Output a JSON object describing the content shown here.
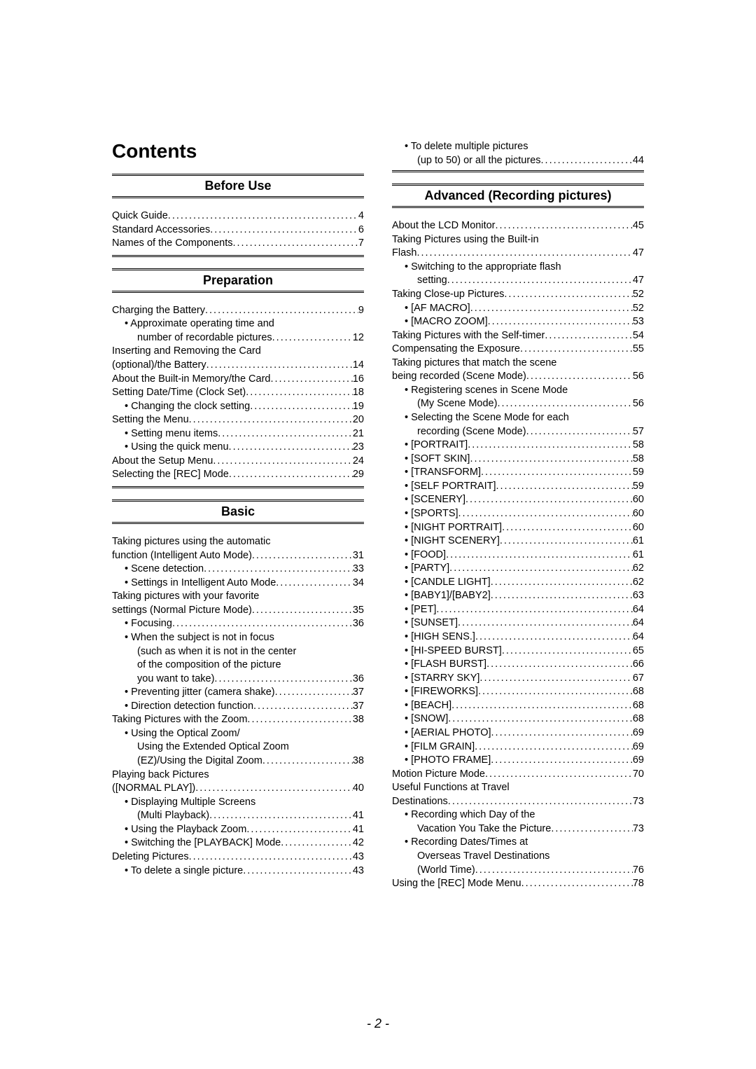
{
  "title": "Contents",
  "pageNumber": "- 2 -",
  "leftColumn": {
    "sections": [
      {
        "header": "Before Use",
        "items": [
          {
            "label": "Quick Guide",
            "page": "4",
            "indent": 0,
            "bullet": false
          },
          {
            "label": "Standard Accessories",
            "page": "6",
            "indent": 0,
            "bullet": false
          },
          {
            "label": "Names of the Components",
            "page": "7",
            "indent": 0,
            "bullet": false
          }
        ]
      },
      {
        "header": "Preparation",
        "items": [
          {
            "label": "Charging the Battery",
            "page": "9",
            "indent": 0,
            "bullet": false
          },
          {
            "label": "• Approximate operating time and",
            "page": "",
            "indent": 1,
            "bullet": false,
            "nodots": true
          },
          {
            "label": "number of recordable pictures",
            "page": "12",
            "indent": 2,
            "bullet": false
          },
          {
            "label": "Inserting and Removing the Card",
            "page": "",
            "indent": 0,
            "bullet": false,
            "nodots": true
          },
          {
            "label": "(optional)/the Battery",
            "page": "14",
            "indent": 0,
            "bullet": false
          },
          {
            "label": "About the Built-in Memory/the Card",
            "page": "16",
            "indent": 0,
            "bullet": false
          },
          {
            "label": "Setting Date/Time (Clock Set)",
            "page": "18",
            "indent": 0,
            "bullet": false
          },
          {
            "label": "• Changing the clock setting",
            "page": "19",
            "indent": 1,
            "bullet": false
          },
          {
            "label": "Setting the Menu",
            "page": "20",
            "indent": 0,
            "bullet": false
          },
          {
            "label": "• Setting menu items",
            "page": "21",
            "indent": 1,
            "bullet": false
          },
          {
            "label": "• Using the quick menu",
            "page": "23",
            "indent": 1,
            "bullet": false
          },
          {
            "label": "About the Setup Menu",
            "page": "24",
            "indent": 0,
            "bullet": false
          },
          {
            "label": "Selecting the [REC] Mode",
            "page": "29",
            "indent": 0,
            "bullet": false
          }
        ]
      },
      {
        "header": "Basic",
        "items": [
          {
            "label": "Taking pictures using the automatic",
            "page": "",
            "indent": 0,
            "bullet": false,
            "nodots": true
          },
          {
            "label": "function (Intelligent Auto Mode)",
            "page": "31",
            "indent": 0,
            "bullet": false
          },
          {
            "label": "• Scene detection",
            "page": "33",
            "indent": 1,
            "bullet": false
          },
          {
            "label": "• Settings in Intelligent Auto Mode",
            "page": "34",
            "indent": 1,
            "bullet": false
          },
          {
            "label": "Taking pictures with your favorite",
            "page": "",
            "indent": 0,
            "bullet": false,
            "nodots": true
          },
          {
            "label": "settings (Normal Picture Mode)",
            "page": "35",
            "indent": 0,
            "bullet": false
          },
          {
            "label": "• Focusing",
            "page": "36",
            "indent": 1,
            "bullet": false
          },
          {
            "label": "• When the subject is not in focus",
            "page": "",
            "indent": 1,
            "bullet": false,
            "nodots": true
          },
          {
            "label": "(such as when it is not in the center",
            "page": "",
            "indent": 2,
            "bullet": false,
            "nodots": true
          },
          {
            "label": "of the composition of the picture",
            "page": "",
            "indent": 2,
            "bullet": false,
            "nodots": true
          },
          {
            "label": "you want to take)",
            "page": "36",
            "indent": 2,
            "bullet": false
          },
          {
            "label": "• Preventing jitter (camera shake)",
            "page": "37",
            "indent": 1,
            "bullet": false
          },
          {
            "label": "• Direction detection function",
            "page": "37",
            "indent": 1,
            "bullet": false
          },
          {
            "label": "Taking Pictures with the Zoom",
            "page": "38",
            "indent": 0,
            "bullet": false
          },
          {
            "label": "• Using the Optical Zoom/",
            "page": "",
            "indent": 1,
            "bullet": false,
            "nodots": true
          },
          {
            "label": "Using the Extended Optical Zoom",
            "page": "",
            "indent": 2,
            "bullet": false,
            "nodots": true
          },
          {
            "label": "(EZ)/Using the Digital Zoom",
            "page": "38",
            "indent": 2,
            "bullet": false
          },
          {
            "label": "Playing back Pictures",
            "page": "",
            "indent": 0,
            "bullet": false,
            "nodots": true
          },
          {
            "label": "([NORMAL PLAY])",
            "page": "40",
            "indent": 0,
            "bullet": false
          },
          {
            "label": "• Displaying Multiple Screens",
            "page": "",
            "indent": 1,
            "bullet": false,
            "nodots": true
          },
          {
            "label": "(Multi Playback)",
            "page": "41",
            "indent": 2,
            "bullet": false
          },
          {
            "label": "• Using the Playback Zoom",
            "page": "41",
            "indent": 1,
            "bullet": false
          },
          {
            "label": "• Switching the [PLAYBACK] Mode",
            "page": "42",
            "indent": 1,
            "bullet": false
          },
          {
            "label": "Deleting Pictures",
            "page": "43",
            "indent": 0,
            "bullet": false
          },
          {
            "label": "• To delete a single picture",
            "page": "43",
            "indent": 1,
            "bullet": false
          }
        ]
      }
    ]
  },
  "rightColumn": {
    "continuation": [
      {
        "label": "• To delete multiple pictures",
        "page": "",
        "indent": 1,
        "nodots": true
      },
      {
        "label": "(up to 50) or all the pictures",
        "page": "44",
        "indent": 2
      }
    ],
    "sections": [
      {
        "header": "Advanced (Recording pictures)",
        "items": [
          {
            "label": "About the LCD Monitor",
            "page": "45",
            "indent": 0
          },
          {
            "label": "Taking Pictures using the Built-in",
            "page": "",
            "indent": 0,
            "nodots": true
          },
          {
            "label": "Flash",
            "page": "47",
            "indent": 0
          },
          {
            "label": "• Switching to the appropriate flash",
            "page": "",
            "indent": 1,
            "nodots": true
          },
          {
            "label": "setting",
            "page": "47",
            "indent": 2
          },
          {
            "label": "Taking Close-up Pictures",
            "page": "52",
            "indent": 0
          },
          {
            "label": "• [AF MACRO]",
            "page": "52",
            "indent": 1
          },
          {
            "label": "• [MACRO ZOOM]",
            "page": "53",
            "indent": 1
          },
          {
            "label": "Taking Pictures with the Self-timer",
            "page": "54",
            "indent": 0
          },
          {
            "label": "Compensating the Exposure",
            "page": "55",
            "indent": 0
          },
          {
            "label": "Taking pictures that match the scene",
            "page": "",
            "indent": 0,
            "nodots": true
          },
          {
            "label": "being recorded (Scene Mode)",
            "page": "56",
            "indent": 0
          },
          {
            "label": "• Registering scenes in Scene Mode",
            "page": "",
            "indent": 1,
            "nodots": true
          },
          {
            "label": "(My Scene Mode)",
            "page": "56",
            "indent": 2
          },
          {
            "label": "• Selecting the Scene Mode for each",
            "page": "",
            "indent": 1,
            "nodots": true
          },
          {
            "label": "recording (Scene Mode)",
            "page": "57",
            "indent": 2
          },
          {
            "label": "• [PORTRAIT]",
            "page": "58",
            "indent": 1
          },
          {
            "label": "• [SOFT SKIN]",
            "page": "58",
            "indent": 1
          },
          {
            "label": "• [TRANSFORM]",
            "page": "59",
            "indent": 1
          },
          {
            "label": "• [SELF PORTRAIT]",
            "page": "59",
            "indent": 1
          },
          {
            "label": "• [SCENERY]",
            "page": "60",
            "indent": 1
          },
          {
            "label": "• [SPORTS]",
            "page": "60",
            "indent": 1
          },
          {
            "label": "• [NIGHT PORTRAIT]",
            "page": "60",
            "indent": 1
          },
          {
            "label": "• [NIGHT SCENERY]",
            "page": "61",
            "indent": 1
          },
          {
            "label": "• [FOOD]",
            "page": "61",
            "indent": 1
          },
          {
            "label": "• [PARTY]",
            "page": "62",
            "indent": 1
          },
          {
            "label": "• [CANDLE LIGHT]",
            "page": "62",
            "indent": 1
          },
          {
            "label": "• [BABY1]/[BABY2]",
            "page": "63",
            "indent": 1
          },
          {
            "label": "• [PET]",
            "page": "64",
            "indent": 1
          },
          {
            "label": "• [SUNSET]",
            "page": "64",
            "indent": 1
          },
          {
            "label": "• [HIGH SENS.]",
            "page": "64",
            "indent": 1
          },
          {
            "label": "• [HI-SPEED BURST]",
            "page": "65",
            "indent": 1
          },
          {
            "label": "• [FLASH BURST]",
            "page": "66",
            "indent": 1
          },
          {
            "label": "• [STARRY SKY]",
            "page": "67",
            "indent": 1
          },
          {
            "label": "• [FIREWORKS]",
            "page": "68",
            "indent": 1
          },
          {
            "label": "• [BEACH]",
            "page": "68",
            "indent": 1
          },
          {
            "label": "• [SNOW]",
            "page": "68",
            "indent": 1
          },
          {
            "label": "• [AERIAL PHOTO]",
            "page": "69",
            "indent": 1
          },
          {
            "label": "• [FILM GRAIN]",
            "page": "69",
            "indent": 1
          },
          {
            "label": "• [PHOTO FRAME]",
            "page": "69",
            "indent": 1
          },
          {
            "label": "Motion Picture Mode",
            "page": "70",
            "indent": 0
          },
          {
            "label": "Useful Functions at Travel",
            "page": "",
            "indent": 0,
            "nodots": true
          },
          {
            "label": "Destinations",
            "page": "73",
            "indent": 0
          },
          {
            "label": "• Recording which Day of the",
            "page": "",
            "indent": 1,
            "nodots": true
          },
          {
            "label": "Vacation You Take the Picture",
            "page": "73",
            "indent": 2
          },
          {
            "label": "• Recording Dates/Times at",
            "page": "",
            "indent": 1,
            "nodots": true
          },
          {
            "label": "Overseas Travel Destinations",
            "page": "",
            "indent": 2,
            "nodots": true
          },
          {
            "label": "(World Time)",
            "page": "76",
            "indent": 2
          },
          {
            "label": "Using the [REC] Mode Menu",
            "page": "78",
            "indent": 0
          }
        ]
      }
    ]
  }
}
